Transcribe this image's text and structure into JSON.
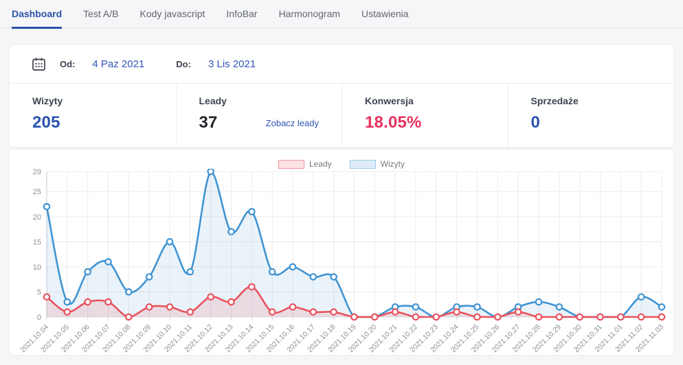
{
  "tabs": [
    {
      "label": "Dashboard",
      "active": true
    },
    {
      "label": "Test A/B",
      "active": false
    },
    {
      "label": "Kody javascript",
      "active": false
    },
    {
      "label": "InfoBar",
      "active": false
    },
    {
      "label": "Harmonogram",
      "active": false
    },
    {
      "label": "Ustawienia",
      "active": false
    }
  ],
  "date_filter": {
    "od_label": "Od:",
    "od_value": "4 Paz 2021",
    "do_label": "Do:",
    "do_value": "3 Lis 2021"
  },
  "stats": [
    {
      "label": "Wizyty",
      "value": "205",
      "color": "#2b52ae"
    },
    {
      "label": "Leady",
      "value": "37",
      "color": "#23262b",
      "link": "Zobacz leady"
    },
    {
      "label": "Konwersja",
      "value": "18.05%",
      "color": "#e8335f"
    },
    {
      "label": "Sprzedaże",
      "value": "0",
      "color": "#2b52ae"
    }
  ],
  "colors": {
    "accent_blue": "#2a52a8",
    "link_blue": "#2e55b5",
    "pink": "#e8335f",
    "leady_line": "#e9515c",
    "leady_fill": "rgba(233,81,92,0.14)",
    "leady_legend_fill": "#fbe0e4",
    "leady_legend_border": "#f0959e",
    "wizyty_line": "#3f93d2",
    "wizyty_fill": "rgba(63,147,210,0.11)",
    "wizyty_legend_fill": "#ddecf8",
    "wizyty_legend_border": "#9fcbe9"
  },
  "chart_data": {
    "type": "line",
    "title": "",
    "xlabel": "",
    "ylabel": "",
    "ylim": [
      0,
      29
    ],
    "yticks": [
      0,
      5,
      10,
      15,
      20,
      25,
      29
    ],
    "grid": true,
    "legend_position": "top",
    "categories": [
      "2021.10.04",
      "2021.10.05",
      "2021.10.06",
      "2021.10.07",
      "2021.10.08",
      "2021.10.09",
      "2021.10.10",
      "2021.10.11",
      "2021.10.12",
      "2021.10.13",
      "2021.10.14",
      "2021.10.15",
      "2021.10.16",
      "2021.10.17",
      "2021.10.18",
      "2021.10.19",
      "2021.10.20",
      "2021.10.21",
      "2021.10.22",
      "2021.10.23",
      "2021.10.24",
      "2021.10.25",
      "2021.10.26",
      "2021.10.27",
      "2021.10.28",
      "2021.10.29",
      "2021.10.30",
      "2021.10.31",
      "2021.11.01",
      "2021.11.02",
      "2021.11.03"
    ],
    "series": [
      {
        "name": "Wizyty",
        "values": [
          22,
          3,
          9,
          11,
          5,
          8,
          15,
          9,
          29,
          17,
          21,
          9,
          10,
          8,
          8,
          0,
          0,
          2,
          2,
          0,
          2,
          2,
          0,
          2,
          3,
          2,
          0,
          0,
          0,
          4,
          2
        ]
      },
      {
        "name": "Leady",
        "values": [
          4,
          1,
          3,
          3,
          0,
          2,
          2,
          1,
          4,
          3,
          6,
          1,
          2,
          1,
          1,
          0,
          0,
          1,
          0,
          0,
          1,
          0,
          0,
          1,
          0,
          0,
          0,
          0,
          0,
          0,
          0
        ]
      }
    ]
  }
}
